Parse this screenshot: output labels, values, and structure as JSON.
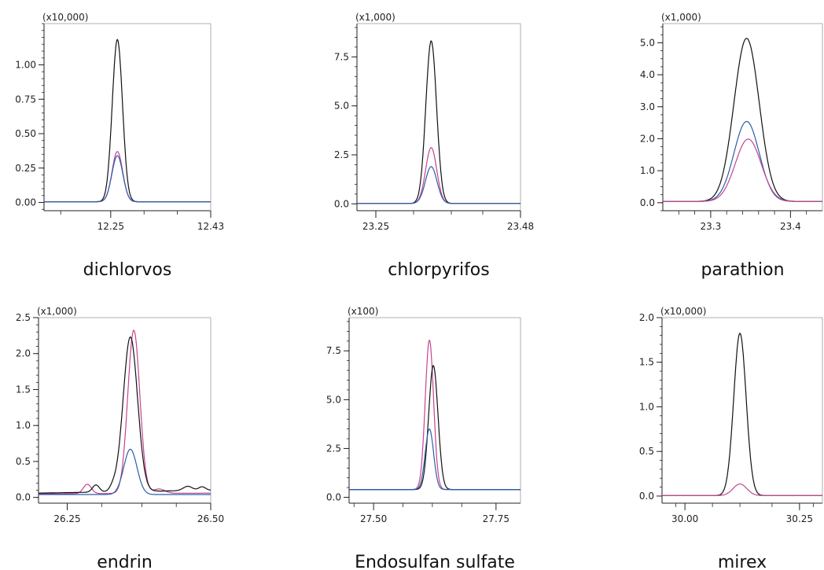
{
  "colors": {
    "black": "#111111",
    "blue": "#2b5ea8",
    "magenta": "#c4458f"
  },
  "chart_data": [
    {
      "type": "line",
      "title": "dichlorvos",
      "y_multiplier": "(x10,000)",
      "xlim": [
        12.13,
        12.43
      ],
      "ylim": [
        -0.06,
        1.3
      ],
      "x_ticks": [
        {
          "value": 12.25,
          "label": "12.25"
        },
        {
          "value": 12.43,
          "label": "12.43"
        }
      ],
      "x_minor": [
        12.16,
        12.31,
        12.37
      ],
      "y_ticks": [
        {
          "value": 0.0,
          "label": "0.00"
        },
        {
          "value": 0.25,
          "label": "0.25"
        },
        {
          "value": 0.5,
          "label": "0.50"
        },
        {
          "value": 0.75,
          "label": "0.75"
        },
        {
          "value": 1.0,
          "label": "1.00"
        }
      ],
      "y_minor_step": 0.05,
      "series": [
        {
          "color": "#111111",
          "peaks": [
            {
              "center": 12.262,
              "height": 1.18,
              "sigma": 0.0092
            }
          ],
          "baseline": [
            [
              12.15,
              0.005
            ],
            [
              12.43,
              0.005
            ]
          ]
        },
        {
          "color": "#c4458f",
          "peaks": [
            {
              "center": 12.262,
              "height": 0.365,
              "sigma": 0.0095
            }
          ],
          "baseline": [
            [
              12.15,
              0.005
            ],
            [
              12.43,
              0.005
            ]
          ]
        },
        {
          "color": "#2b5ea8",
          "peaks": [
            {
              "center": 12.262,
              "height": 0.335,
              "sigma": 0.0098
            }
          ],
          "baseline": [
            [
              12.15,
              0.005
            ],
            [
              12.43,
              0.005
            ]
          ]
        }
      ]
    },
    {
      "type": "line",
      "title": "chlorpyrifos",
      "y_multiplier": "(x1,000)",
      "xlim": [
        23.22,
        23.48
      ],
      "ylim": [
        -0.35,
        9.2
      ],
      "x_ticks": [
        {
          "value": 23.25,
          "label": "23.25"
        },
        {
          "value": 23.48,
          "label": "23.48"
        }
      ],
      "x_minor": [
        23.31,
        23.37,
        23.42
      ],
      "y_ticks": [
        {
          "value": 0.0,
          "label": "0.0"
        },
        {
          "value": 2.5,
          "label": "2.5"
        },
        {
          "value": 5.0,
          "label": "5.0"
        },
        {
          "value": 7.5,
          "label": "7.5"
        }
      ],
      "y_minor_step": 0.5,
      "series": [
        {
          "color": "#111111",
          "peaks": [
            {
              "center": 23.338,
              "height": 8.3,
              "sigma": 0.0085
            }
          ],
          "baseline": [
            [
              23.22,
              0.02
            ],
            [
              23.48,
              0.02
            ]
          ]
        },
        {
          "color": "#c4458f",
          "peaks": [
            {
              "center": 23.338,
              "height": 2.85,
              "sigma": 0.0088
            }
          ],
          "baseline": [
            [
              23.22,
              0.02
            ],
            [
              23.48,
              0.02
            ]
          ]
        },
        {
          "color": "#2b5ea8",
          "peaks": [
            {
              "center": 23.338,
              "height": 1.88,
              "sigma": 0.0092
            }
          ],
          "baseline": [
            [
              23.22,
              0.02
            ],
            [
              23.48,
              0.02
            ]
          ]
        }
      ]
    },
    {
      "type": "line",
      "title": "parathion",
      "y_multiplier": "(x1,000)",
      "xlim": [
        23.24,
        23.44
      ],
      "ylim": [
        -0.25,
        5.6
      ],
      "x_ticks": [
        {
          "value": 23.3,
          "label": "23.3"
        },
        {
          "value": 23.4,
          "label": "23.4"
        }
      ],
      "x_minor": [
        23.26,
        23.28,
        23.32,
        23.34,
        23.36,
        23.38,
        23.42
      ],
      "y_ticks": [
        {
          "value": 0.0,
          "label": "0.0"
        },
        {
          "value": 1.0,
          "label": "1.0"
        },
        {
          "value": 2.0,
          "label": "2.0"
        },
        {
          "value": 3.0,
          "label": "3.0"
        },
        {
          "value": 4.0,
          "label": "4.0"
        },
        {
          "value": 5.0,
          "label": "5.0"
        }
      ],
      "y_minor_step": 0.25,
      "series": [
        {
          "color": "#111111",
          "peaks": [
            {
              "center": 23.345,
              "height": 5.1,
              "sigma": 0.0158
            }
          ],
          "baseline": [
            [
              23.24,
              0.04
            ],
            [
              23.44,
              0.04
            ]
          ]
        },
        {
          "color": "#2b5ea8",
          "peaks": [
            {
              "center": 23.345,
              "height": 2.5,
              "sigma": 0.0158
            }
          ],
          "baseline": [
            [
              23.24,
              0.04
            ],
            [
              23.44,
              0.04
            ]
          ]
        },
        {
          "color": "#c4458f",
          "peaks": [
            {
              "center": 23.347,
              "height": 1.95,
              "sigma": 0.0162
            }
          ],
          "baseline": [
            [
              23.24,
              0.04
            ],
            [
              23.44,
              0.04
            ]
          ]
        }
      ]
    },
    {
      "type": "line",
      "title": "endrin",
      "y_multiplier": "(x1,000)",
      "xlim": [
        26.2,
        26.5
      ],
      "ylim": [
        -0.08,
        2.5
      ],
      "x_ticks": [
        {
          "value": 26.25,
          "label": "26.25"
        },
        {
          "value": 26.5,
          "label": "26.50"
        }
      ],
      "x_minor": [
        26.31,
        26.38,
        26.44
      ],
      "y_ticks": [
        {
          "value": 0.0,
          "label": "0.0"
        },
        {
          "value": 0.5,
          "label": "0.5"
        },
        {
          "value": 1.0,
          "label": "1.0"
        },
        {
          "value": 1.5,
          "label": "1.5"
        },
        {
          "value": 2.0,
          "label": "2.0"
        },
        {
          "value": 2.5,
          "label": "2.5"
        }
      ],
      "y_minor_step": 0.1,
      "series": [
        {
          "color": "#c4458f",
          "peaks": [
            {
              "center": 26.366,
              "height": 2.27,
              "sigma": 0.0105
            },
            {
              "center": 26.285,
              "height": 0.13,
              "sigma": 0.007
            },
            {
              "center": 26.41,
              "height": 0.06,
              "sigma": 0.01
            }
          ],
          "baseline": [
            [
              26.2,
              0.05
            ],
            [
              26.5,
              0.06
            ]
          ]
        },
        {
          "color": "#111111",
          "peaks": [
            {
              "center": 26.36,
              "height": 2.15,
              "sigma": 0.0125
            },
            {
              "center": 26.3,
              "height": 0.1,
              "sigma": 0.006
            },
            {
              "center": 26.33,
              "height": 0.06,
              "sigma": 0.006
            },
            {
              "center": 26.46,
              "height": 0.06,
              "sigma": 0.008
            },
            {
              "center": 26.485,
              "height": 0.05,
              "sigma": 0.006
            }
          ],
          "baseline": [
            [
              26.2,
              0.06
            ],
            [
              26.5,
              0.1
            ]
          ]
        },
        {
          "color": "#2b5ea8",
          "peaks": [
            {
              "center": 26.36,
              "height": 0.63,
              "sigma": 0.0115
            }
          ],
          "baseline": [
            [
              26.2,
              0.04
            ],
            [
              26.5,
              0.04
            ]
          ]
        }
      ]
    },
    {
      "type": "line",
      "title": "Endosulfan sulfate",
      "y_multiplier": "(x100)",
      "xlim": [
        27.45,
        27.8
      ],
      "ylim": [
        -0.3,
        9.2
      ],
      "x_ticks": [
        {
          "value": 27.5,
          "label": "27.50"
        },
        {
          "value": 27.75,
          "label": "27.75"
        }
      ],
      "x_minor": [
        27.46,
        27.56,
        27.62,
        27.68
      ],
      "y_ticks": [
        {
          "value": 0.0,
          "label": "0.0"
        },
        {
          "value": 2.5,
          "label": "2.5"
        },
        {
          "value": 5.0,
          "label": "5.0"
        },
        {
          "value": 7.5,
          "label": "7.5"
        }
      ],
      "y_minor_step": 0.5,
      "series": [
        {
          "color": "#c4458f",
          "peaks": [
            {
              "center": 27.614,
              "height": 7.65,
              "sigma": 0.0085
            }
          ],
          "baseline": [
            [
              27.45,
              0.4
            ],
            [
              27.8,
              0.4
            ]
          ]
        },
        {
          "color": "#111111",
          "peaks": [
            {
              "center": 27.622,
              "height": 6.35,
              "sigma": 0.0095
            }
          ],
          "baseline": [
            [
              27.45,
              0.4
            ],
            [
              27.8,
              0.4
            ]
          ]
        },
        {
          "color": "#2b5ea8",
          "peaks": [
            {
              "center": 27.614,
              "height": 3.1,
              "sigma": 0.0085
            }
          ],
          "baseline": [
            [
              27.45,
              0.4
            ],
            [
              27.8,
              0.4
            ]
          ]
        }
      ]
    },
    {
      "type": "line",
      "title": "mirex",
      "y_multiplier": "(x10,000)",
      "xlim": [
        29.95,
        30.3
      ],
      "ylim": [
        -0.08,
        2.0
      ],
      "x_ticks": [
        {
          "value": 30.0,
          "label": "30.00"
        },
        {
          "value": 30.25,
          "label": "30.25"
        }
      ],
      "x_minor": [
        29.98,
        30.06,
        30.12,
        30.19,
        30.28
      ],
      "y_ticks": [
        {
          "value": 0.0,
          "label": "0.0"
        },
        {
          "value": 0.5,
          "label": "0.5"
        },
        {
          "value": 1.0,
          "label": "1.0"
        },
        {
          "value": 1.5,
          "label": "1.5"
        },
        {
          "value": 2.0,
          "label": "2.0"
        }
      ],
      "y_minor_step": 0.1,
      "series": [
        {
          "color": "#111111",
          "peaks": [
            {
              "center": 30.12,
              "height": 1.82,
              "sigma": 0.0135
            }
          ],
          "baseline": [
            [
              29.95,
              0.005
            ],
            [
              30.3,
              0.005
            ]
          ]
        },
        {
          "color": "#c4458f",
          "peaks": [
            {
              "center": 30.12,
              "height": 0.13,
              "sigma": 0.015
            }
          ],
          "baseline": [
            [
              29.95,
              0.005
            ],
            [
              30.3,
              0.005
            ]
          ]
        }
      ]
    }
  ]
}
